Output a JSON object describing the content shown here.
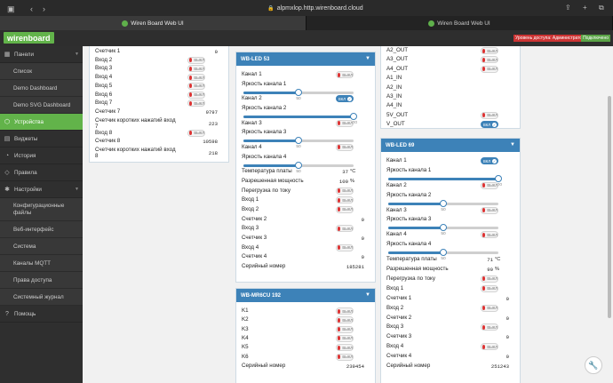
{
  "browser": {
    "url": "alpmxlop.http.wirenboard.cloud",
    "tabs": [
      {
        "label": "Wiren Board Web UI"
      },
      {
        "label": "Wiren Board Web UI"
      }
    ]
  },
  "app": {
    "logo": "wirenboard",
    "access": "Уровень доступа: Администратор",
    "connection": "Подключено"
  },
  "sidebar": {
    "items": [
      {
        "label": "Панели",
        "icon": "dashboard-icon"
      },
      {
        "label": "Список"
      },
      {
        "label": "Demo Dashboard"
      },
      {
        "label": "Demo SVG Dashboard"
      },
      {
        "label": "Устройства",
        "icon": "devices-icon"
      },
      {
        "label": "Виджеты",
        "icon": "widgets-icon"
      },
      {
        "label": "История",
        "icon": "history-icon"
      },
      {
        "label": "Правила",
        "icon": "rules-icon"
      },
      {
        "label": "Настройки",
        "icon": "settings-icon"
      },
      {
        "label": "Конфигурационные файлы"
      },
      {
        "label": "Веб-интерфейс"
      },
      {
        "label": "Система"
      },
      {
        "label": "Каналы MQTT"
      },
      {
        "label": "Права доступа"
      },
      {
        "label": "Системный журнал"
      },
      {
        "label": "Помощь",
        "icon": "help-icon"
      }
    ]
  },
  "switch": {
    "off": "ВЫКЛ",
    "on": "ВКЛ"
  },
  "panel1": {
    "rows": [
      {
        "label": "Счетчик 1",
        "value": "0"
      },
      {
        "label": "Вход 2"
      },
      {
        "label": "Вход 3"
      },
      {
        "label": "Вход 4"
      },
      {
        "label": "Вход 5"
      },
      {
        "label": "Вход 6"
      },
      {
        "label": "Вход 7"
      },
      {
        "label": "Счетчик 7",
        "value": "9797"
      },
      {
        "label": "Счетчик коротких нажатий вход 7",
        "value": "223"
      },
      {
        "label": "Вход 8"
      },
      {
        "label": "Счетчик 8",
        "value": "10598"
      },
      {
        "label": "Счетчик коротких нажатий вход 8",
        "value": "218"
      }
    ]
  },
  "wbled53": {
    "title": "WB-LED 53",
    "rows": [
      {
        "label": "Канал 1",
        "state": "off"
      },
      {
        "label": "Яркость канала 1",
        "level": 50,
        "value": "50"
      },
      {
        "label": "Канал 2",
        "state": "on"
      },
      {
        "label": "Яркость канала 2",
        "level": 100,
        "value": "100"
      },
      {
        "label": "Канал 3",
        "state": "off"
      },
      {
        "label": "Яркость канала 3",
        "level": 50,
        "value": "50"
      },
      {
        "label": "Канал 4",
        "state": "off"
      },
      {
        "label": "Яркость канала 4",
        "level": 50,
        "value": "50"
      },
      {
        "label": "Температура платы",
        "value": "37",
        "unit": "°C"
      },
      {
        "label": "Разрешенная мощность",
        "value": "100",
        "unit": "%"
      },
      {
        "label": "Перегрузка по току"
      },
      {
        "label": "Вход 1"
      },
      {
        "label": "Вход 2"
      },
      {
        "label": "Счетчик 2",
        "value": "0"
      },
      {
        "label": "Вход 3"
      },
      {
        "label": "Счетчик 3",
        "value": "0"
      },
      {
        "label": "Вход 4"
      },
      {
        "label": "Счетчик 4",
        "value": "0"
      },
      {
        "label": "Серийный номер",
        "value": "185281"
      }
    ]
  },
  "mr6cu": {
    "title": "WB-MR6CU 192",
    "rows": [
      {
        "label": "K1"
      },
      {
        "label": "K2"
      },
      {
        "label": "K3"
      },
      {
        "label": "K4"
      },
      {
        "label": "K5"
      },
      {
        "label": "K6"
      },
      {
        "label": "Серийный номер",
        "value": "239454"
      }
    ]
  },
  "ioPanel": {
    "rows": [
      {
        "label": "A2_OUT"
      },
      {
        "label": "A3_OUT"
      },
      {
        "label": "A4_OUT"
      },
      {
        "label": "A1_IN"
      },
      {
        "label": "A2_IN"
      },
      {
        "label": "A3_IN"
      },
      {
        "label": "A4_IN"
      },
      {
        "label": "5V_OUT"
      },
      {
        "label": "V_OUT",
        "state": "on"
      }
    ]
  },
  "wbled69": {
    "title": "WB-LED 69",
    "rows": [
      {
        "label": "Канал 1",
        "state": "on"
      },
      {
        "label": "Яркость канала 1",
        "level": 100,
        "value": "100"
      },
      {
        "label": "Канал 2",
        "state": "off"
      },
      {
        "label": "Яркость канала 2",
        "level": 50,
        "value": "50"
      },
      {
        "label": "Канал 3",
        "state": "off"
      },
      {
        "label": "Яркость канала 3",
        "level": 50,
        "value": "50"
      },
      {
        "label": "Канал 4",
        "state": "off"
      },
      {
        "label": "Яркость канала 4",
        "level": 50,
        "value": "50"
      },
      {
        "label": "Температура платы",
        "value": "71",
        "unit": "°C"
      },
      {
        "label": "Разрешенная мощность",
        "value": "90",
        "unit": "%"
      },
      {
        "label": "Перегрузка по току"
      },
      {
        "label": "Вход 1"
      },
      {
        "label": "Счетчик 1",
        "value": "0"
      },
      {
        "label": "Вход 2"
      },
      {
        "label": "Счетчик 2",
        "value": "0"
      },
      {
        "label": "Вход 3"
      },
      {
        "label": "Счетчик 3",
        "value": "0"
      },
      {
        "label": "Вход 4"
      },
      {
        "label": "Счетчик 4",
        "value": "0"
      },
      {
        "label": "Серийный номер",
        "value": "251243"
      }
    ]
  }
}
